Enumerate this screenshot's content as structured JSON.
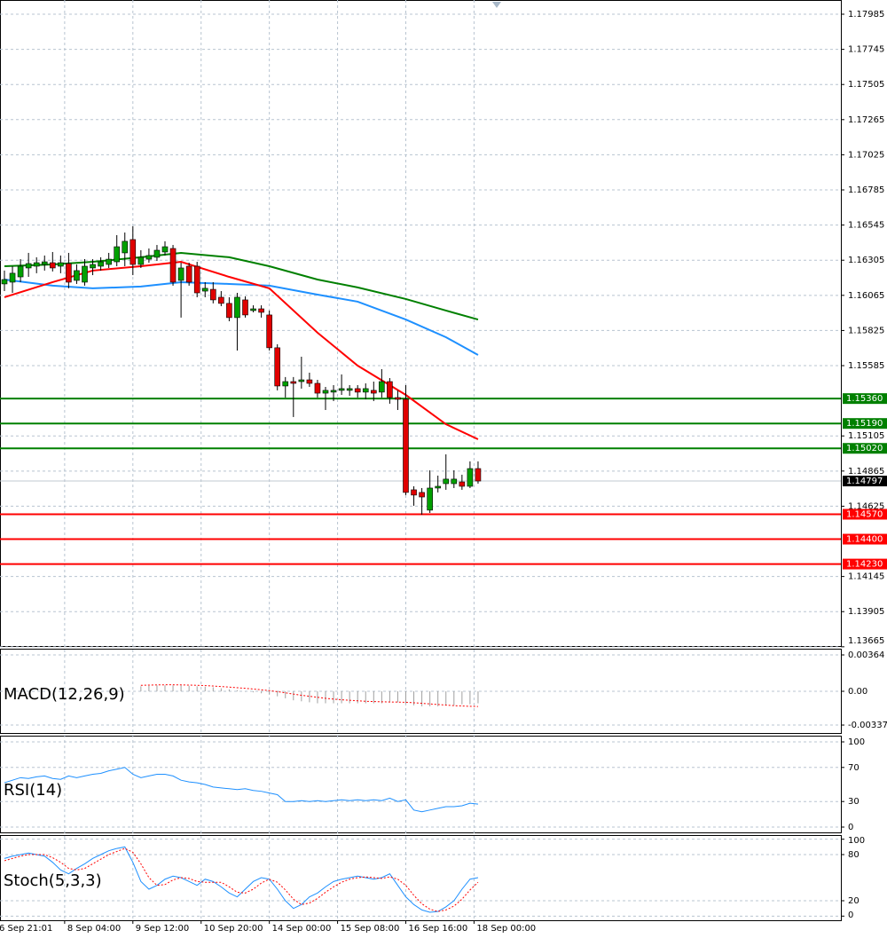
{
  "chart_data": [
    {
      "type": "candlestick",
      "open": [
        1.16143,
        1.16155,
        1.16191,
        1.16252,
        1.16264,
        1.16276,
        1.16288,
        1.16264,
        1.16282,
        1.16167,
        1.16155,
        1.16252,
        1.16264,
        1.16276,
        1.16294,
        1.16355,
        1.16446,
        1.16276,
        1.16312,
        1.16325,
        1.16361,
        1.16385,
        1.16167,
        1.16264,
        1.16264,
        1.16094,
        1.16106,
        1.16052,
        1.1601,
        1.15913,
        1.16034,
        1.15961,
        1.15973,
        1.15931,
        1.15707,
        1.15446,
        1.15476,
        1.15476,
        1.15488,
        1.15464,
        1.15397,
        1.15404,
        1.15416,
        1.15416,
        1.15428,
        1.15404,
        1.15416,
        1.15404,
        1.15476,
        1.15367,
        1.15355,
        1.14737,
        1.14719,
        1.14598,
        1.14749,
        1.14779,
        1.14779,
        1.14791,
        1.14761,
        1.14882
      ],
      "high": [
        1.16234,
        1.16264,
        1.16312,
        1.16355,
        1.16325,
        1.16337,
        1.16361,
        1.16337,
        1.16355,
        1.16276,
        1.16312,
        1.16312,
        1.16325,
        1.16355,
        1.16476,
        1.16494,
        1.16537,
        1.16373,
        1.16385,
        1.16409,
        1.16434,
        1.16409,
        1.16288,
        1.16288,
        1.16294,
        1.16155,
        1.16155,
        1.16094,
        1.16052,
        1.16082,
        1.16058,
        1.15997,
        1.15997,
        1.15961,
        1.15731,
        1.15507,
        1.15507,
        1.15646,
        1.15537,
        1.15488,
        1.1544,
        1.15452,
        1.15525,
        1.15452,
        1.15452,
        1.15464,
        1.15476,
        1.15561,
        1.155,
        1.15416,
        1.15452,
        1.14761,
        1.14749,
        1.1487,
        1.14834,
        1.14979,
        1.1487,
        1.1484,
        1.14931,
        1.14931
      ],
      "low": [
        1.16094,
        1.16082,
        1.16155,
        1.16191,
        1.16216,
        1.16234,
        1.16228,
        1.16216,
        1.16113,
        1.16143,
        1.16131,
        1.16203,
        1.16234,
        1.16252,
        1.16264,
        1.16264,
        1.16203,
        1.16252,
        1.16288,
        1.163,
        1.16337,
        1.16131,
        1.15913,
        1.16131,
        1.16052,
        1.16052,
        1.1601,
        1.15991,
        1.15888,
        1.15688,
        1.15913,
        1.15949,
        1.15913,
        1.15688,
        1.15416,
        1.15367,
        1.15234,
        1.15428,
        1.1544,
        1.15367,
        1.15282,
        1.15343,
        1.15385,
        1.15379,
        1.15367,
        1.15355,
        1.15343,
        1.15367,
        1.15325,
        1.15282,
        1.14701,
        1.14628,
        1.14567,
        1.14579,
        1.14719,
        1.14737,
        1.14749,
        1.14737,
        1.14749,
        1.14779
      ],
      "close": [
        1.16173,
        1.16216,
        1.16264,
        1.16282,
        1.16288,
        1.16294,
        1.16252,
        1.16288,
        1.16155,
        1.16234,
        1.16264,
        1.16276,
        1.16294,
        1.16312,
        1.16397,
        1.16434,
        1.16276,
        1.16325,
        1.16337,
        1.16373,
        1.16397,
        1.16155,
        1.16252,
        1.16155,
        1.16082,
        1.16113,
        1.16034,
        1.1601,
        1.15913,
        1.16052,
        1.15931,
        1.15973,
        1.15949,
        1.15707,
        1.15446,
        1.15476,
        1.15464,
        1.15488,
        1.15464,
        1.15397,
        1.15416,
        1.15416,
        1.15428,
        1.15428,
        1.15404,
        1.15428,
        1.15397,
        1.15476,
        1.15367,
        1.15355,
        1.14719,
        1.14701,
        1.14688,
        1.14749,
        1.14761,
        1.1481,
        1.1481,
        1.14761,
        1.14882,
        1.14797
      ],
      "up_color": "#00a000",
      "down_color": "#e00000",
      "lines": {
        "x": [
          0,
          6,
          11,
          17,
          22,
          28,
          33,
          39,
          44,
          50,
          55,
          59
        ],
        "series": [
          {
            "color": "#008000",
            "values": [
              1.16264,
              1.16276,
              1.16294,
              1.16325,
              1.16355,
              1.16325,
              1.16264,
              1.16173,
              1.16119,
              1.1604,
              1.15961,
              1.159
            ]
          },
          {
            "color": "#1e90ff",
            "values": [
              1.16173,
              1.16131,
              1.16113,
              1.16125,
              1.16155,
              1.16143,
              1.16131,
              1.1607,
              1.16022,
              1.159,
              1.15779,
              1.15658
            ]
          },
          {
            "color": "#ff0000",
            "values": [
              1.16052,
              1.16155,
              1.16234,
              1.16264,
              1.16294,
              1.16191,
              1.16113,
              1.1581,
              1.15585,
              1.15385,
              1.15185,
              1.15082
            ]
          }
        ]
      },
      "levels": [
        {
          "value": 1.1536,
          "label": "1.15360",
          "color": "#008000"
        },
        {
          "value": 1.1519,
          "label": "1.15190",
          "color": "#008000"
        },
        {
          "value": 1.1502,
          "label": "1.15020",
          "color": "#008000"
        },
        {
          "value": 1.14797,
          "label": "1.14797",
          "color": "#000000",
          "current": true
        },
        {
          "value": 1.1457,
          "label": "1.14570",
          "color": "#ff0000"
        },
        {
          "value": 1.144,
          "label": "1.14400",
          "color": "#ff0000"
        },
        {
          "value": 1.1423,
          "label": "1.14230",
          "color": "#ff0000"
        }
      ],
      "ylim": [
        1.1367,
        1.18082
      ],
      "yticks": [
        1.17985,
        1.17745,
        1.17505,
        1.17265,
        1.17025,
        1.16785,
        1.16545,
        1.16305,
        1.16065,
        1.15825,
        1.15585,
        1.15105,
        1.14865,
        1.14625,
        1.14145,
        1.13905,
        1.13665
      ],
      "xticks": [
        {
          "value": -1,
          "label": "6 Sep 21:01"
        },
        {
          "value": 7.5,
          "label": "8 Sep 04:00"
        },
        {
          "value": 16,
          "label": "9 Sep 12:00"
        },
        {
          "value": 24.5,
          "label": "10 Sep 20:00"
        },
        {
          "value": 33,
          "label": "14 Sep 00:00"
        },
        {
          "value": 41.5,
          "label": "15 Sep 08:00"
        },
        {
          "value": 50,
          "label": "16 Sep 16:00"
        },
        {
          "value": 58.5,
          "label": "18 Sep 00:00"
        }
      ],
      "grid": true
    },
    {
      "type": "macd",
      "title": "MACD(12,26,9)",
      "histogram": [
        null,
        null,
        null,
        null,
        null,
        null,
        null,
        null,
        null,
        null,
        null,
        null,
        null,
        null,
        null,
        null,
        null,
        0.0005,
        0.00055,
        0.0006,
        0.0006,
        0.0006,
        0.00058,
        0.00055,
        0.0005,
        0.00045,
        0.0004,
        0.0003,
        0.0002,
        0.0001,
        0,
        -0.0001,
        -0.0002,
        -0.0003,
        -0.0005,
        -0.0007,
        -0.0009,
        -0.001,
        -0.0011,
        -0.0012,
        -0.0012,
        -0.0012,
        -0.0012,
        -0.0012,
        -0.0012,
        -0.0012,
        -0.0012,
        -0.0012,
        -0.0011,
        -0.0011,
        -0.0012,
        -0.0014,
        -0.0015,
        -0.0015,
        -0.0015,
        -0.0014,
        -0.0014,
        -0.0013,
        -0.0013,
        -0.0012
      ],
      "signal": [
        null,
        null,
        null,
        null,
        null,
        null,
        null,
        null,
        null,
        null,
        null,
        null,
        null,
        null,
        null,
        null,
        null,
        0.0006,
        0.00062,
        0.00064,
        0.00065,
        0.00065,
        0.00064,
        0.00062,
        0.0006,
        0.00057,
        0.00053,
        0.00048,
        0.00042,
        0.00036,
        0.0003,
        0.00023,
        0.00015,
        7e-05,
        -3e-05,
        -0.00015,
        -0.00028,
        -0.0004,
        -0.0005,
        -0.0006,
        -0.0007,
        -0.00078,
        -0.00085,
        -0.0009,
        -0.00095,
        -0.001,
        -0.00103,
        -0.00105,
        -0.00107,
        -0.00108,
        -0.0011,
        -0.00115,
        -0.0012,
        -0.00126,
        -0.00132,
        -0.00138,
        -0.00143,
        -0.00147,
        -0.0015,
        -0.00152
      ],
      "histogram_color": "#a0a0a0",
      "signal_color": "#ff0000",
      "ylim": [
        -0.00417,
        0.00426
      ],
      "yticks": [
        0.00364,
        {
          "value": 0,
          "label": "0.00"
        },
        -0.003374
      ],
      "grid": true
    },
    {
      "type": "line",
      "title": "RSI(14)",
      "series": [
        {
          "color": "#1e90ff",
          "values": [
            52,
            55,
            58,
            57,
            59,
            60,
            57,
            56,
            60,
            58,
            60,
            62,
            63,
            66,
            68,
            70,
            62,
            58,
            60,
            62,
            62,
            60,
            55,
            53,
            52,
            50,
            47,
            46,
            45,
            44,
            45,
            43,
            42,
            40,
            38,
            30,
            30,
            31,
            30,
            31,
            30,
            31,
            32,
            31,
            32,
            31,
            32,
            31,
            34,
            30,
            32,
            20,
            18,
            20,
            22,
            24,
            24,
            25,
            28,
            27
          ]
        }
      ],
      "ylim": [
        -6.25,
        107.3
      ],
      "yticks": [
        100,
        70,
        30,
        0
      ],
      "grid": true
    },
    {
      "type": "line",
      "title": "Stoch(5,3,3)",
      "series": [
        {
          "color": "#1e90ff",
          "values": [
            75,
            78,
            80,
            82,
            80,
            78,
            70,
            60,
            55,
            62,
            68,
            75,
            80,
            85,
            88,
            90,
            70,
            45,
            35,
            40,
            48,
            52,
            50,
            45,
            40,
            48,
            45,
            38,
            30,
            25,
            35,
            45,
            50,
            48,
            35,
            20,
            10,
            15,
            25,
            30,
            38,
            45,
            48,
            50,
            52,
            50,
            48,
            50,
            55,
            40,
            25,
            15,
            8,
            5,
            6,
            12,
            20,
            35,
            48,
            50
          ]
        },
        {
          "color": "#ff0000",
          "dashed": true,
          "values": [
            72,
            75,
            78,
            80,
            80,
            80,
            76,
            70,
            62,
            60,
            62,
            68,
            74,
            80,
            84,
            88,
            83,
            68,
            50,
            40,
            41,
            47,
            50,
            49,
            45,
            44,
            44,
            44,
            38,
            31,
            30,
            35,
            43,
            48,
            44,
            34,
            22,
            15,
            17,
            23,
            31,
            38,
            44,
            48,
            50,
            51,
            50,
            49,
            51,
            48,
            40,
            27,
            16,
            9,
            6,
            8,
            13,
            22,
            34,
            44
          ]
        }
      ],
      "ylim": [
        -5.4,
        105.4
      ],
      "yticks": [
        100,
        80,
        20,
        0
      ],
      "grid": true
    }
  ]
}
